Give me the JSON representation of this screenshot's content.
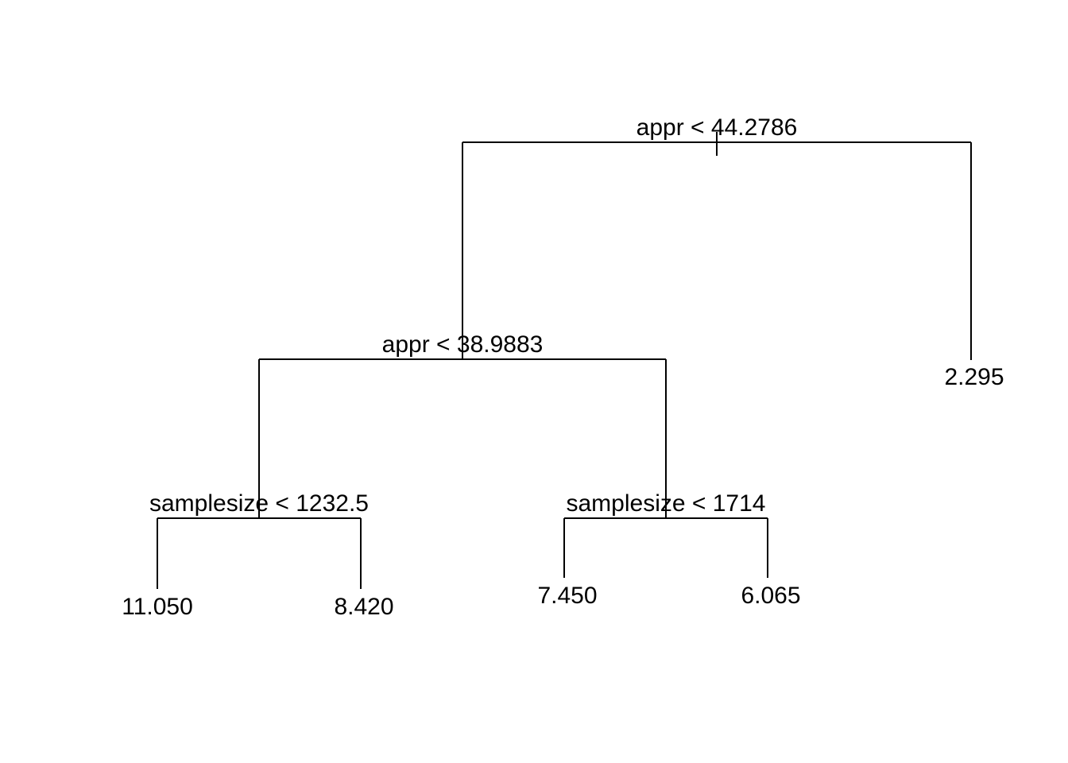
{
  "tree": {
    "root": {
      "split": "appr < 44.2786",
      "left": {
        "split": "appr < 38.9883",
        "left": {
          "split": "samplesize < 1232.5",
          "left": {
            "leaf": "11.050"
          },
          "right": {
            "leaf": "8.420"
          }
        },
        "right": {
          "split": "samplesize < 1714",
          "left": {
            "leaf": "7.450"
          },
          "right": {
            "leaf": "6.065"
          }
        }
      },
      "right": {
        "leaf": "2.295"
      }
    }
  },
  "colors": {
    "line": "#000000",
    "text": "#000000",
    "background": "#ffffff"
  }
}
